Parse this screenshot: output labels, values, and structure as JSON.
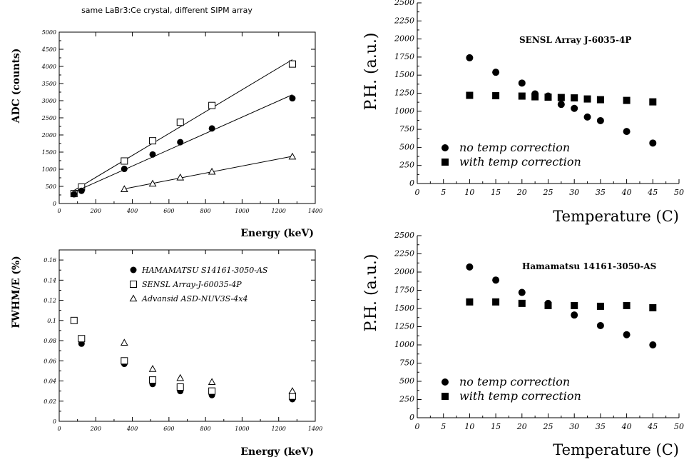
{
  "chart_data": [
    {
      "id": "adc",
      "type": "scatter",
      "title": "same LaBr3:Ce crystal, different SIPM array",
      "xlabel": "Energy (keV)",
      "ylabel": "ADC (counts)",
      "xlim": [
        0,
        1400
      ],
      "ylim": [
        0,
        5000
      ],
      "xticks": [
        0,
        200,
        400,
        600,
        800,
        1000,
        1200,
        1400
      ],
      "yticks": [
        0,
        500,
        1000,
        1500,
        2000,
        2500,
        3000,
        3500,
        4000,
        4500,
        5000
      ],
      "grid": false,
      "series": [
        {
          "marker": "open-square",
          "fit_line": true,
          "x": [
            81,
            122,
            356,
            511,
            662,
            835,
            1275
          ],
          "y": [
            290,
            480,
            1240,
            1830,
            2370,
            2860,
            4070
          ]
        },
        {
          "marker": "filled-circle",
          "fit_line": true,
          "x": [
            81,
            122,
            356,
            511,
            662,
            835,
            1275
          ],
          "y": [
            270,
            370,
            1010,
            1430,
            1790,
            2190,
            3070
          ]
        },
        {
          "marker": "open-triangle",
          "fit_line": true,
          "x": [
            356,
            511,
            662,
            835,
            1275
          ],
          "y": [
            420,
            580,
            760,
            930,
            1370
          ]
        }
      ]
    },
    {
      "id": "fwhm",
      "type": "scatter",
      "title": "",
      "xlabel": "Energy (keV)",
      "ylabel": "FWHM/E (%)",
      "xlim": [
        0,
        1400
      ],
      "ylim": [
        0,
        0.17
      ],
      "xticks": [
        0,
        200,
        400,
        600,
        800,
        1000,
        1200,
        1400
      ],
      "yticks": [
        0,
        0.02,
        0.04,
        0.06,
        0.08,
        0.1,
        0.12,
        0.14,
        0.16
      ],
      "ytick_labels": [
        "0",
        "0.02",
        "0.04",
        "0.06",
        "0.08",
        "0.1",
        "0.12",
        "0.14",
        "0.16"
      ],
      "grid": false,
      "legend_position": "top-right",
      "series": [
        {
          "name": "HAMAMATSU S14161-3050-AS",
          "marker": "filled-circle",
          "x": [
            81,
            122,
            356,
            511,
            662,
            835,
            1275
          ],
          "y": [
            0.1,
            0.077,
            0.057,
            0.037,
            0.03,
            0.026,
            0.022
          ]
        },
        {
          "name": "SENSL Array-J-60035-4P",
          "marker": "open-square",
          "x": [
            81,
            122,
            356,
            511,
            662,
            835,
            1275
          ],
          "y": [
            0.1,
            0.082,
            0.06,
            0.041,
            0.034,
            0.03,
            0.025
          ]
        },
        {
          "name": "Advansid ASD-NUV3S-4x4",
          "marker": "open-triangle",
          "x": [
            356,
            511,
            662,
            835,
            1275
          ],
          "y": [
            0.078,
            0.052,
            0.043,
            0.039,
            0.03
          ]
        }
      ]
    },
    {
      "id": "sensl_temp",
      "type": "scatter",
      "title": "SENSL Array J-6035-4P",
      "xlabel": "Temperature (C)",
      "ylabel": "P.H. (a.u.)",
      "xlim": [
        0,
        50
      ],
      "ylim": [
        0,
        2500
      ],
      "xticks": [
        0,
        5,
        10,
        15,
        20,
        25,
        30,
        35,
        40,
        45,
        50
      ],
      "yticks": [
        0,
        250,
        500,
        750,
        1000,
        1250,
        1500,
        1750,
        2000,
        2250,
        2500
      ],
      "grid": false,
      "legend_position": "bottom-left",
      "series": [
        {
          "name": "no temp correction",
          "marker": "filled-circle",
          "x": [
            10,
            15,
            20,
            22.5,
            25,
            27.5,
            30,
            32.5,
            35,
            40,
            45
          ],
          "y": [
            1740,
            1540,
            1390,
            1240,
            1210,
            1095,
            1040,
            920,
            870,
            720,
            560
          ]
        },
        {
          "name": "with temp correction",
          "marker": "filled-square",
          "x": [
            10,
            15,
            20,
            22.5,
            25,
            27.5,
            30,
            32.5,
            35,
            40,
            45
          ],
          "y": [
            1220,
            1215,
            1210,
            1200,
            1195,
            1190,
            1185,
            1170,
            1160,
            1150,
            1130
          ]
        }
      ]
    },
    {
      "id": "hamamatsu_temp",
      "type": "scatter",
      "title": "Hamamatsu 14161-3050-AS",
      "xlabel": "Temperature (C)",
      "ylabel": "P.H. (a.u.)",
      "xlim": [
        0,
        50
      ],
      "ylim": [
        0,
        2500
      ],
      "xticks": [
        0,
        5,
        10,
        15,
        20,
        25,
        30,
        35,
        40,
        45,
        50
      ],
      "yticks": [
        0,
        250,
        500,
        750,
        1000,
        1250,
        1500,
        1750,
        2000,
        2250,
        2500
      ],
      "grid": false,
      "legend_position": "bottom-left",
      "series": [
        {
          "name": "no temp correction",
          "marker": "filled-circle",
          "x": [
            10,
            15,
            20,
            25,
            30,
            35,
            40,
            45
          ],
          "y": [
            2070,
            1890,
            1720,
            1570,
            1410,
            1265,
            1140,
            1000
          ]
        },
        {
          "name": "with temp correction",
          "marker": "filled-square",
          "x": [
            10,
            15,
            20,
            25,
            30,
            35,
            40,
            45
          ],
          "y": [
            1590,
            1590,
            1570,
            1540,
            1540,
            1530,
            1540,
            1510
          ]
        }
      ]
    }
  ]
}
